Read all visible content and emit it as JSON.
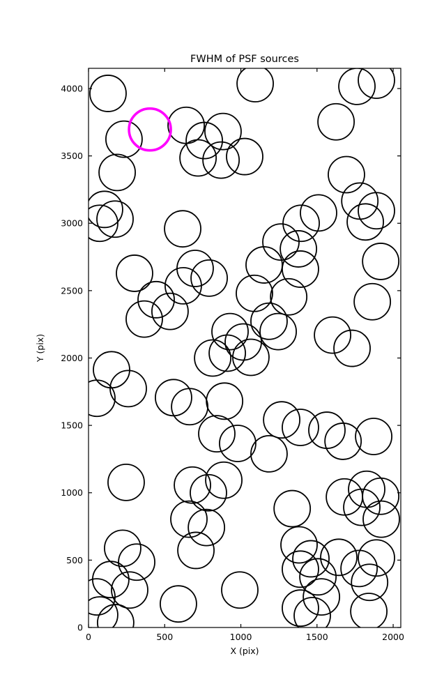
{
  "figure": {
    "background": "#ffffff"
  },
  "chart_data": {
    "type": "scatter",
    "marker": "open-circle",
    "title": "FWHM of PSF sources",
    "xlabel": "X (pix)",
    "ylabel": "Y (pix)",
    "xlim": [
      0,
      2050
    ],
    "ylim": [
      0,
      4150
    ],
    "xticks": [
      0,
      500,
      1000,
      1500,
      2000
    ],
    "yticks": [
      0,
      500,
      1000,
      1500,
      2000,
      2500,
      3000,
      3500,
      4000
    ],
    "grid": false,
    "legend": "none",
    "marker_radius_px": 26,
    "marker_stroke_px": 1.8,
    "marker_color": "#000000",
    "points": [
      [
        128,
        3964
      ],
      [
        233,
        3624
      ],
      [
        641,
        3727
      ],
      [
        760,
        3614
      ],
      [
        883,
        3681
      ],
      [
        719,
        3485
      ],
      [
        870,
        3469
      ],
      [
        1025,
        3495
      ],
      [
        1094,
        4036
      ],
      [
        1762,
        4016
      ],
      [
        1890,
        4062
      ],
      [
        1625,
        3753
      ],
      [
        188,
        3377
      ],
      [
        105,
        3103
      ],
      [
        174,
        3031
      ],
      [
        73,
        3000
      ],
      [
        618,
        2959
      ],
      [
        1693,
        3361
      ],
      [
        1781,
        3165
      ],
      [
        1890,
        3093
      ],
      [
        1817,
        3010
      ],
      [
        1396,
        3000
      ],
      [
        1510,
        3077
      ],
      [
        302,
        2629
      ],
      [
        700,
        2665
      ],
      [
        792,
        2593
      ],
      [
        1153,
        2691
      ],
      [
        1391,
        2660
      ],
      [
        1918,
        2717
      ],
      [
        444,
        2433
      ],
      [
        535,
        2346
      ],
      [
        366,
        2289
      ],
      [
        1089,
        2480
      ],
      [
        1314,
        2454
      ],
      [
        1863,
        2418
      ],
      [
        622,
        2536
      ],
      [
        929,
        2196
      ],
      [
        1016,
        2119
      ],
      [
        911,
        2036
      ],
      [
        815,
        2000
      ],
      [
        1066,
        2005
      ],
      [
        1185,
        2273
      ],
      [
        1245,
        2196
      ],
      [
        1730,
        2072
      ],
      [
        1602,
        2170
      ],
      [
        151,
        1913
      ],
      [
        261,
        1773
      ],
      [
        55,
        1701
      ],
      [
        558,
        1706
      ],
      [
        664,
        1639
      ],
      [
        893,
        1680
      ],
      [
        842,
        1438
      ],
      [
        979,
        1366
      ],
      [
        1268,
        1541
      ],
      [
        1391,
        1485
      ],
      [
        1565,
        1464
      ],
      [
        1671,
        1382
      ],
      [
        1872,
        1418
      ],
      [
        1185,
        1289
      ],
      [
        247,
        1077
      ],
      [
        682,
        1057
      ],
      [
        787,
        1000
      ],
      [
        888,
        1093
      ],
      [
        1337,
        882
      ],
      [
        1680,
        969
      ],
      [
        1826,
        1026
      ],
      [
        1918,
        974
      ],
      [
        1794,
        892
      ],
      [
        1922,
        804
      ],
      [
        659,
        804
      ],
      [
        774,
        742
      ],
      [
        224,
        588
      ],
      [
        316,
        485
      ],
      [
        146,
        356
      ],
      [
        55,
        227
      ],
      [
        270,
        278
      ],
      [
        705,
        572
      ],
      [
        993,
        278
      ],
      [
        1382,
        613
      ],
      [
        1460,
        510
      ],
      [
        1391,
        433
      ],
      [
        1506,
        376
      ],
      [
        1643,
        521
      ],
      [
        1776,
        438
      ],
      [
        1890,
        516
      ],
      [
        1845,
        335
      ],
      [
        590,
        175
      ],
      [
        1391,
        144
      ],
      [
        1529,
        227
      ],
      [
        1840,
        119
      ],
      [
        73,
        93
      ],
      [
        178,
        36
      ],
      [
        1469,
        88
      ],
      [
        1263,
        2861
      ],
      [
        1378,
        2810
      ]
    ],
    "highlight": {
      "point": [
        403,
        3696
      ],
      "color": "#FF00FF",
      "radius_px": 30,
      "stroke_px": 3.6
    }
  }
}
